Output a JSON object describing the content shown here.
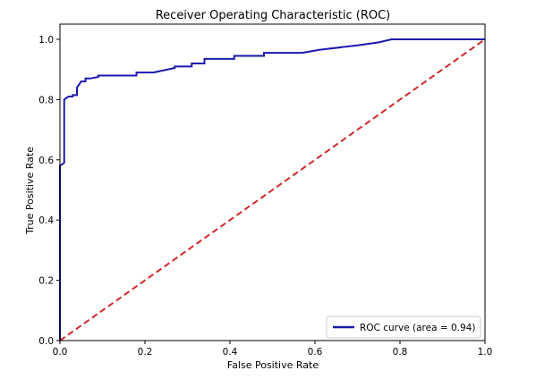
{
  "chart_data": {
    "type": "line",
    "title": "Receiver Operating Characteristic (ROC)",
    "xlabel": "False Positive Rate",
    "ylabel": "True Positive Rate",
    "xlim": [
      0.0,
      1.0
    ],
    "ylim": [
      0.0,
      1.0
    ],
    "xticks": [
      "0.0",
      "0.2",
      "0.4",
      "0.6",
      "0.8",
      "1.0"
    ],
    "yticks": [
      "0.0",
      "0.2",
      "0.4",
      "0.6",
      "0.8",
      "1.0"
    ],
    "grid": false,
    "legend_position": "lower-right",
    "series": [
      {
        "name": "ROC curve (area = 0.94)",
        "color": "#1a1aad",
        "style": "solid",
        "x": [
          0.0,
          0.0,
          0.01,
          0.01,
          0.01,
          0.02,
          0.03,
          0.03,
          0.04,
          0.04,
          0.045,
          0.05,
          0.06,
          0.06,
          0.07,
          0.09,
          0.09,
          0.1,
          0.15,
          0.18,
          0.18,
          0.22,
          0.22,
          0.27,
          0.27,
          0.31,
          0.31,
          0.34,
          0.34,
          0.41,
          0.41,
          0.48,
          0.48,
          0.57,
          0.61,
          0.7,
          0.75,
          0.78,
          0.85,
          1.0
        ],
        "y": [
          0.0,
          0.58,
          0.59,
          0.79,
          0.8,
          0.81,
          0.81,
          0.815,
          0.815,
          0.84,
          0.85,
          0.86,
          0.86,
          0.87,
          0.87,
          0.875,
          0.88,
          0.88,
          0.88,
          0.88,
          0.89,
          0.89,
          0.89,
          0.905,
          0.91,
          0.91,
          0.92,
          0.92,
          0.935,
          0.935,
          0.945,
          0.945,
          0.955,
          0.955,
          0.965,
          0.98,
          0.99,
          1.0,
          1.0,
          1.0
        ]
      },
      {
        "name": "",
        "color": "#d62728",
        "style": "dashed",
        "x": [
          0.0,
          1.0
        ],
        "y": [
          0.0,
          1.0
        ]
      }
    ]
  }
}
